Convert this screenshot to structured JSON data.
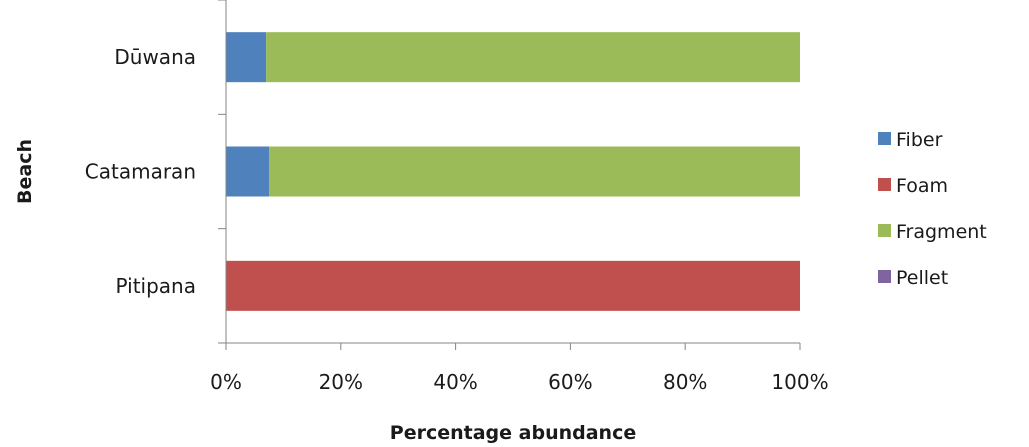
{
  "chart_data": {
    "type": "bar",
    "orientation": "horizontal",
    "stacked": "percent",
    "title": "",
    "xlabel": "Percentage abundance",
    "ylabel": "Beach",
    "xlim": [
      0,
      100
    ],
    "x_ticks": [
      "0%",
      "20%",
      "40%",
      "60%",
      "80%",
      "100%"
    ],
    "categories": [
      "Dūwana",
      "Catamaran",
      "Pitipana"
    ],
    "series": [
      {
        "name": "Fiber",
        "color": "#4f81bd",
        "values": [
          7,
          7.5,
          0
        ]
      },
      {
        "name": "Foam",
        "color": "#c0504d",
        "values": [
          0,
          0,
          100
        ]
      },
      {
        "name": "Fragment",
        "color": "#9bbb59",
        "values": [
          93,
          92.5,
          0
        ]
      },
      {
        "name": "Pellet",
        "color": "#8064a2",
        "values": [
          0,
          0,
          0
        ]
      }
    ],
    "grid": false,
    "legend_position": "right"
  }
}
